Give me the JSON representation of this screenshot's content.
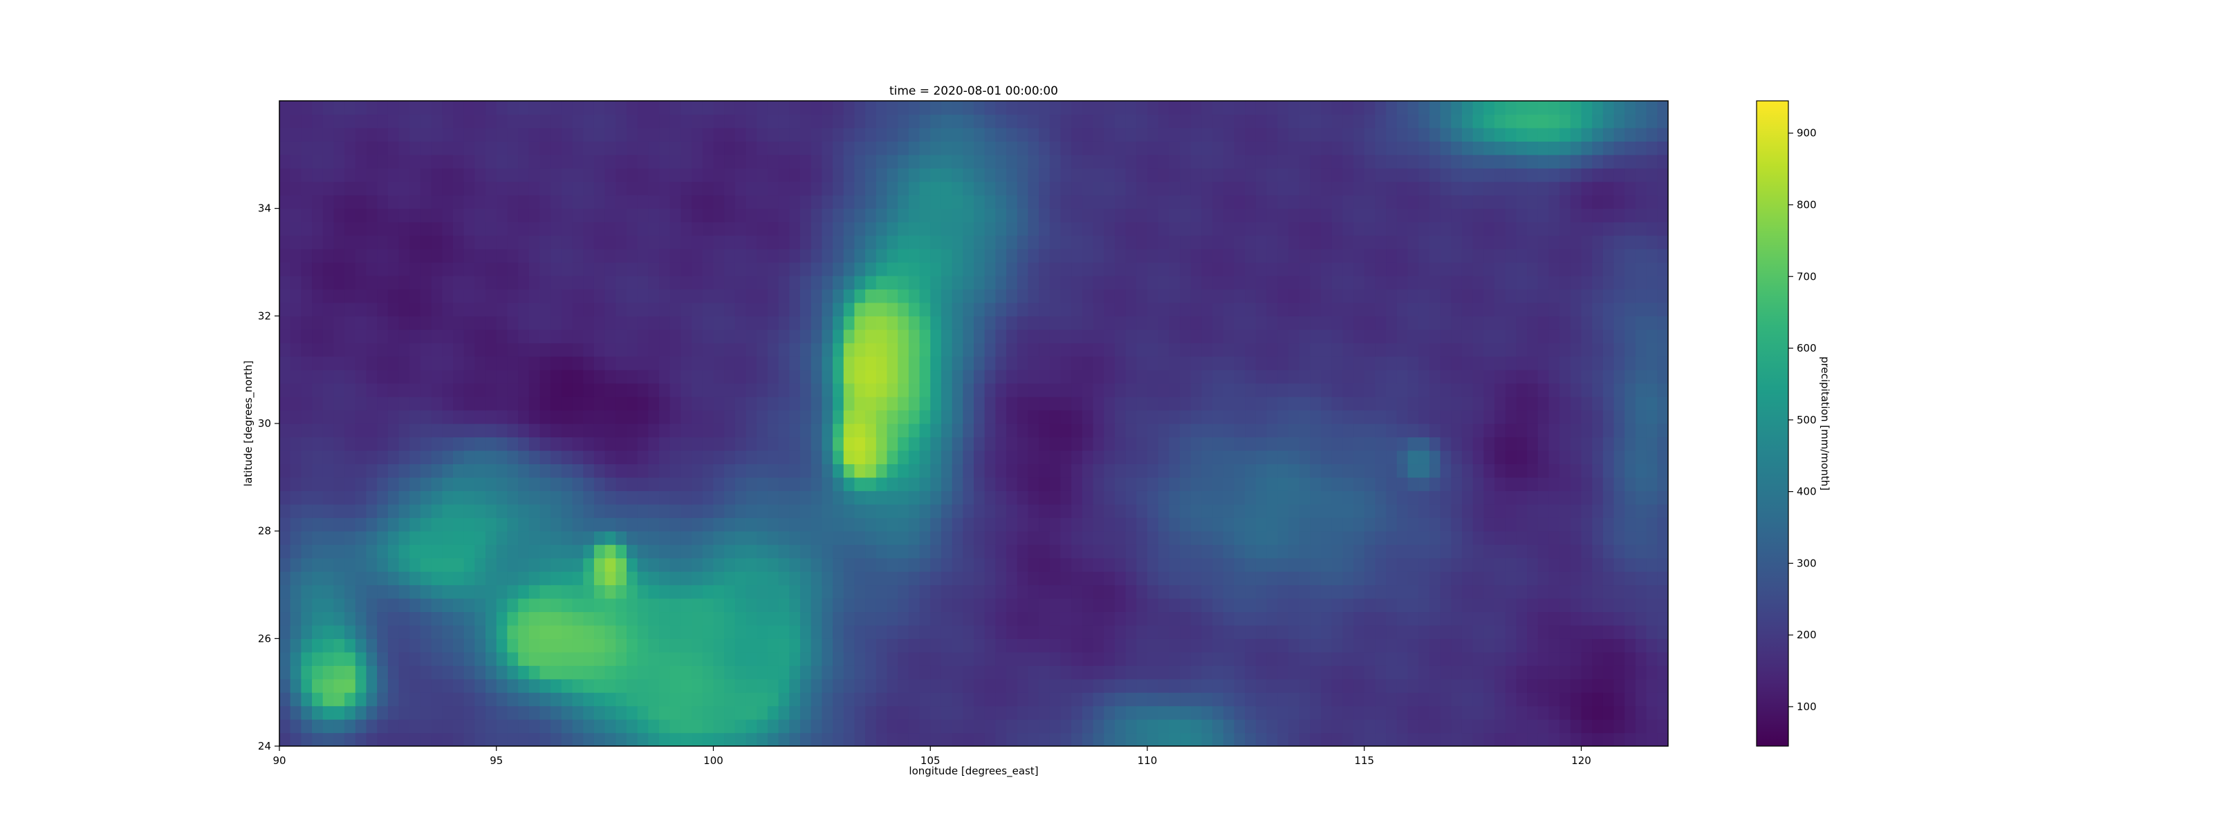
{
  "chart_data": {
    "type": "heatmap",
    "title": "time = 2020-08-01 00:00:00",
    "xlabel": "longitude [degrees_east]",
    "ylabel": "latitude [degrees_north]",
    "xlim": [
      90,
      122
    ],
    "ylim": [
      24,
      36
    ],
    "xticks": [
      90,
      95,
      100,
      105,
      110,
      115,
      120
    ],
    "yticks": [
      24,
      26,
      28,
      30,
      32,
      34
    ],
    "colorbar": {
      "label": "precipitation [mm/month]",
      "vmin": 45,
      "vmax": 945,
      "ticks": [
        100,
        200,
        300,
        400,
        500,
        600,
        700,
        800,
        900
      ],
      "colormap": "viridis"
    },
    "grid": false,
    "background_level": 180,
    "features": [
      {
        "lon": 103.8,
        "lat": 31.2,
        "value": 920,
        "rlon": 0.8,
        "rlat": 1.1
      },
      {
        "lon": 103.4,
        "lat": 29.6,
        "value": 880,
        "rlon": 0.5,
        "rlat": 0.6
      },
      {
        "lon": 104.2,
        "lat": 30.5,
        "value": 620,
        "rlon": 1.6,
        "rlat": 2.8
      },
      {
        "lon": 105.5,
        "lat": 34.0,
        "value": 450,
        "rlon": 1.8,
        "rlat": 2.0
      },
      {
        "lon": 97.6,
        "lat": 27.3,
        "value": 930,
        "rlon": 0.35,
        "rlat": 0.45
      },
      {
        "lon": 96.6,
        "lat": 26.0,
        "value": 820,
        "rlon": 1.3,
        "rlat": 0.7
      },
      {
        "lon": 97.0,
        "lat": 26.5,
        "value": 520,
        "rlon": 2.8,
        "rlat": 1.8
      },
      {
        "lon": 99.5,
        "lat": 25.0,
        "value": 600,
        "rlon": 2.2,
        "rlat": 1.6
      },
      {
        "lon": 101.2,
        "lat": 26.5,
        "value": 470,
        "rlon": 1.6,
        "rlat": 2.2
      },
      {
        "lon": 93.5,
        "lat": 27.6,
        "value": 530,
        "rlon": 1.5,
        "rlat": 0.9
      },
      {
        "lon": 95.0,
        "lat": 28.9,
        "value": 480,
        "rlon": 1.8,
        "rlat": 0.9
      },
      {
        "lon": 91.3,
        "lat": 25.2,
        "value": 720,
        "rlon": 0.9,
        "rlat": 0.8
      },
      {
        "lon": 90.9,
        "lat": 26.6,
        "value": 420,
        "rlon": 1.0,
        "rlat": 1.5
      },
      {
        "lon": 119.0,
        "lat": 35.7,
        "value": 640,
        "rlon": 2.4,
        "rlat": 0.8
      },
      {
        "lon": 110.5,
        "lat": 24.2,
        "value": 440,
        "rlon": 2.0,
        "rlat": 0.8
      },
      {
        "lon": 113.0,
        "lat": 28.4,
        "value": 360,
        "rlon": 3.5,
        "rlat": 1.8
      },
      {
        "lon": 121.5,
        "lat": 30.0,
        "value": 330,
        "rlon": 1.0,
        "rlat": 3.5
      },
      {
        "lon": 116.3,
        "lat": 29.3,
        "value": 380,
        "rlon": 0.4,
        "rlat": 0.4
      },
      {
        "lon": 96.8,
        "lat": 30.0,
        "value": 60,
        "rlon": 2.5,
        "rlat": 1.4
      },
      {
        "lon": 92.5,
        "lat": 33.0,
        "value": 110,
        "rlon": 3.5,
        "rlat": 2.5
      },
      {
        "lon": 100.5,
        "lat": 34.2,
        "value": 130,
        "rlon": 3.0,
        "rlat": 1.6
      },
      {
        "lon": 107.5,
        "lat": 29.7,
        "value": 80,
        "rlon": 1.8,
        "rlat": 1.8
      },
      {
        "lon": 108.5,
        "lat": 26.8,
        "value": 110,
        "rlon": 2.0,
        "rlat": 1.3
      },
      {
        "lon": 118.5,
        "lat": 29.5,
        "value": 95,
        "rlon": 1.3,
        "rlat": 1.5
      },
      {
        "lon": 120.5,
        "lat": 25.0,
        "value": 80,
        "rlon": 1.8,
        "rlat": 1.6
      },
      {
        "lon": 121.0,
        "lat": 34.5,
        "value": 100,
        "rlon": 1.2,
        "rlat": 1.0
      },
      {
        "lon": 113.0,
        "lat": 33.0,
        "value": 160,
        "rlon": 3.0,
        "rlat": 2.0
      }
    ]
  }
}
